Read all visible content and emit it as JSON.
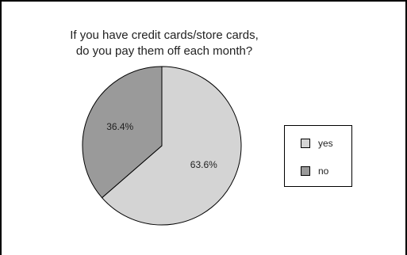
{
  "chart_data": {
    "type": "pie",
    "title": [
      "If you have credit cards/store cards,",
      "do you pay them off each month?"
    ],
    "categories": [
      "yes",
      "no"
    ],
    "values": [
      63.6,
      36.4
    ],
    "labels": [
      "63.6%",
      "36.4%"
    ],
    "colors": [
      "#d4d4d4",
      "#9a9a9a"
    ],
    "legend_position": "right"
  }
}
